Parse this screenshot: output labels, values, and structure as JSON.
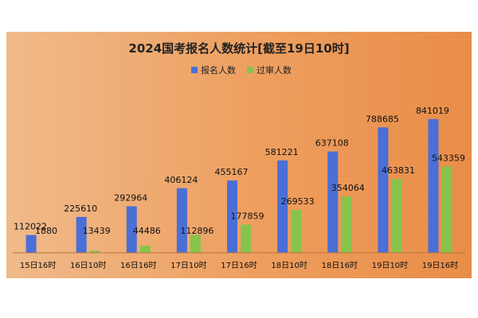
{
  "chart_data": {
    "type": "bar",
    "title": "2024国考报名人数统计[截至19日10时]",
    "categories": [
      "15日16时",
      "16日10时",
      "16日16时",
      "17日10时",
      "17日16时",
      "18日10时",
      "18日16时",
      "19日10时",
      "19日16时"
    ],
    "series": [
      {
        "name": "报名人数",
        "color": "#4a6fd6",
        "values": [
          112022,
          225610,
          292964,
          406124,
          455167,
          581221,
          637108,
          788685,
          841019
        ]
      },
      {
        "name": "过审人数",
        "color": "#86c44c",
        "values": [
          1880,
          13439,
          44486,
          112896,
          177859,
          269533,
          354064,
          463831,
          543359
        ]
      }
    ],
    "ylim": [
      0,
      1000000
    ],
    "grid": false,
    "legend": "top"
  }
}
